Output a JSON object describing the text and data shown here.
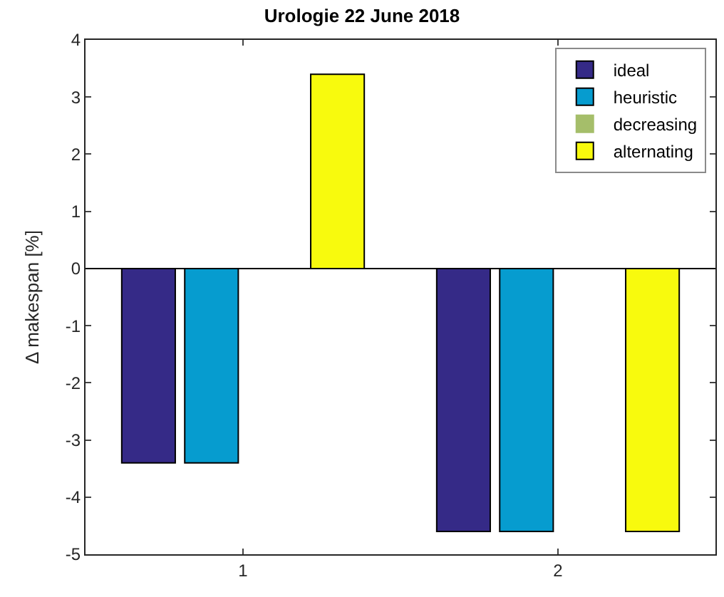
{
  "chart_data": {
    "type": "bar",
    "title": "Urologie 22 June 2018",
    "ylabel": "Δ makespan [%]",
    "categories": [
      "1",
      "2"
    ],
    "series": [
      {
        "name": "ideal",
        "color": "#352a87",
        "values": [
          -3.4,
          -4.6
        ]
      },
      {
        "name": "heuristic",
        "color": "#069ccf",
        "values": [
          -3.4,
          -4.6
        ]
      },
      {
        "name": "decreasing",
        "color": "#a5be6a",
        "values": [
          0,
          0
        ]
      },
      {
        "name": "alternating",
        "color": "#f8fa0d",
        "values": [
          3.4,
          -4.6
        ]
      }
    ],
    "ylim": [
      -5,
      4
    ],
    "yticks": [
      -5,
      -4,
      -3,
      -2,
      -1,
      0,
      1,
      2,
      3,
      4
    ],
    "grid": false,
    "ref_lines": [
      {
        "axis": "y",
        "value": 0,
        "color": "#000000"
      }
    ],
    "legend": "top right"
  }
}
